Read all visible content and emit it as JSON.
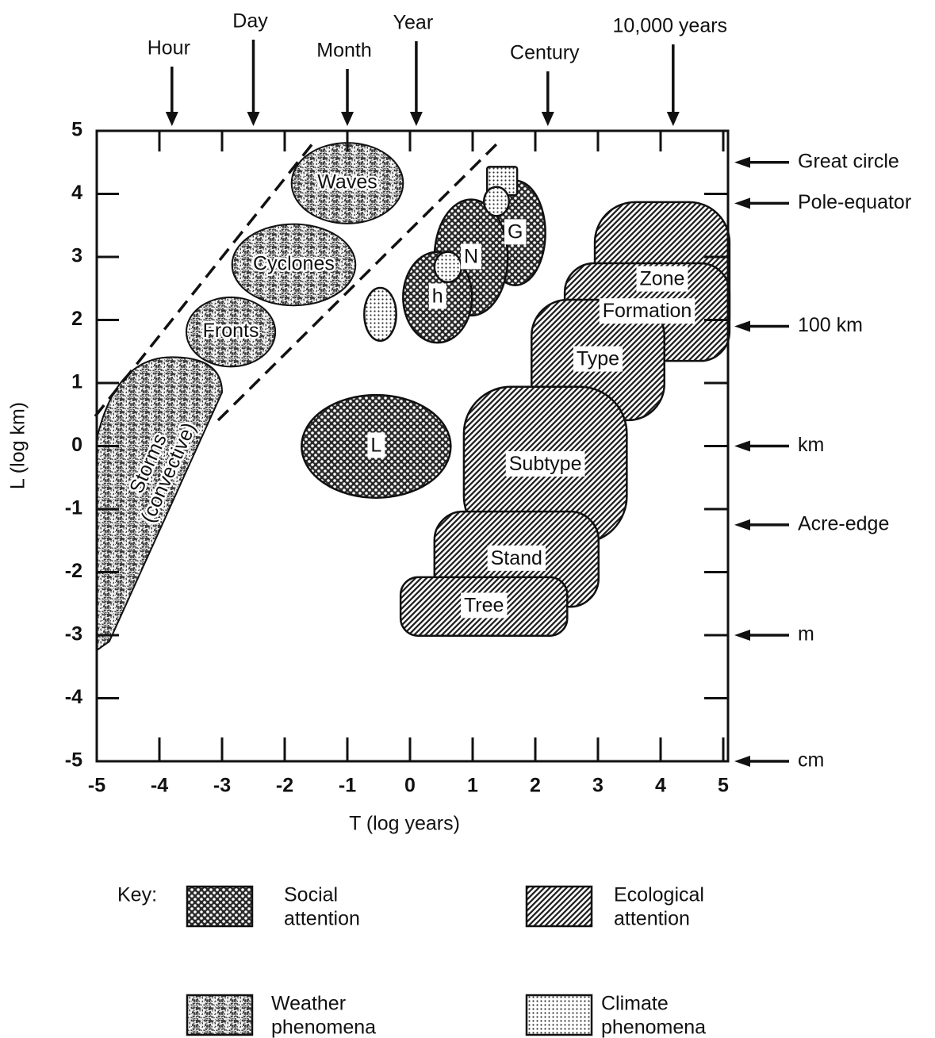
{
  "chart_data": {
    "type": "region",
    "x_label": "T (log years)",
    "y_label": "L (log km)",
    "xlim": [
      -5,
      5
    ],
    "ylim": [
      -5,
      5
    ],
    "xticks": [
      -5,
      -4,
      -3,
      -2,
      -1,
      0,
      1,
      2,
      3,
      4,
      5
    ],
    "yticks": [
      -5,
      -4,
      -3,
      -2,
      -1,
      0,
      1,
      2,
      3,
      4,
      5
    ],
    "top_markers": [
      {
        "label": "Hour",
        "x": -3.8
      },
      {
        "label": "Day",
        "x": -2.5
      },
      {
        "label": "Month",
        "x": -1.0
      },
      {
        "label": "Year",
        "x": 0.1
      },
      {
        "label": "Century",
        "x": 2.2
      },
      {
        "label": "10,000 years",
        "x": 4.2
      }
    ],
    "right_markers": [
      {
        "label": "Great circle",
        "y": 4.5
      },
      {
        "label": "Pole-equator",
        "y": 3.85
      },
      {
        "label": "100 km",
        "y": 1.9
      },
      {
        "label": "km",
        "y": 0
      },
      {
        "label": "Acre-edge",
        "y": -1.25
      },
      {
        "label": "m",
        "y": -3
      },
      {
        "label": "cm",
        "y": -5
      }
    ],
    "regions": [
      {
        "label": "Zone",
        "kind": "ecological",
        "shape": "rounded",
        "x": [
          2.95,
          5.1
        ],
        "y": [
          1.4,
          3.87
        ]
      },
      {
        "label": "Formation",
        "kind": "ecological",
        "shape": "rounded",
        "x": [
          2.47,
          5.1
        ],
        "y": [
          1.35,
          2.9
        ]
      },
      {
        "label": "Type",
        "kind": "ecological",
        "shape": "rounded",
        "x": [
          1.94,
          4.06
        ],
        "y": [
          0.41,
          2.32
        ]
      },
      {
        "label": "Subtype",
        "kind": "ecological",
        "shape": "rounded",
        "x": [
          0.86,
          3.46
        ],
        "y": [
          -1.54,
          0.94
        ]
      },
      {
        "label": "Stand",
        "kind": "ecological",
        "shape": "rounded",
        "x": [
          0.39,
          3.01
        ],
        "y": [
          -2.55,
          -1.04
        ]
      },
      {
        "label": "Tree",
        "kind": "ecological",
        "shape": "rounded",
        "x": [
          -0.15,
          2.51
        ],
        "y": [
          -3.01,
          -2.08
        ]
      },
      {
        "label": "Storms (convective)",
        "label_lines": [
          "Storms",
          "(convective)"
        ],
        "kind": "weather",
        "shape": "tapered",
        "x": [
          -5,
          -3.0
        ],
        "y": [
          -3.24,
          1.41
        ]
      },
      {
        "label": "Fronts",
        "kind": "weather",
        "shape": "ellipse",
        "x": [
          -3.57,
          -2.15
        ],
        "y": [
          1.26,
          2.36
        ]
      },
      {
        "label": "Cyclones",
        "kind": "weather",
        "shape": "ellipse",
        "x": [
          -2.84,
          -0.87
        ],
        "y": [
          2.23,
          3.52
        ]
      },
      {
        "label": "Waves",
        "kind": "weather",
        "shape": "ellipse",
        "x": [
          -1.89,
          -0.11
        ],
        "y": [
          3.53,
          4.81
        ]
      },
      {
        "label": "G",
        "kind": "social",
        "shape": "ellipse",
        "x": [
          1.2,
          2.16
        ],
        "y": [
          2.55,
          4.21
        ]
      },
      {
        "label": "N",
        "kind": "social",
        "shape": "ellipse",
        "x": [
          0.39,
          1.56
        ],
        "y": [
          2.07,
          3.91
        ]
      },
      {
        "label": "h",
        "kind": "social",
        "shape": "ellipse",
        "x": [
          -0.11,
          0.99
        ],
        "y": [
          1.64,
          3.08
        ]
      },
      {
        "label": "L",
        "kind": "social",
        "shape": "ellipse",
        "x": [
          -1.73,
          0.65
        ],
        "y": [
          -0.82,
          0.81
        ]
      },
      {
        "kind": "climate",
        "shape": "ellipse",
        "x": [
          -0.73,
          -0.22
        ],
        "y": [
          1.67,
          2.51
        ]
      },
      {
        "kind": "climate",
        "shape": "ellipse",
        "x": [
          0.39,
          0.82
        ],
        "y": [
          2.6,
          3.08
        ]
      },
      {
        "kind": "climate",
        "shape": "rect",
        "x": [
          1.23,
          1.71
        ],
        "y": [
          3.98,
          4.43
        ]
      },
      {
        "kind": "climate",
        "shape": "ellipse",
        "x": [
          1.18,
          1.58
        ],
        "y": [
          3.65,
          4.11
        ]
      }
    ],
    "key_title": "Key:",
    "key": [
      {
        "kind": "social",
        "label_lines": [
          "Social",
          "attention"
        ]
      },
      {
        "kind": "ecological",
        "label_lines": [
          "Ecological",
          "attention"
        ]
      },
      {
        "kind": "weather",
        "label_lines": [
          "Weather",
          "phenomena"
        ]
      },
      {
        "kind": "climate",
        "label_lines": [
          "Climate",
          "phenomena"
        ]
      }
    ]
  }
}
